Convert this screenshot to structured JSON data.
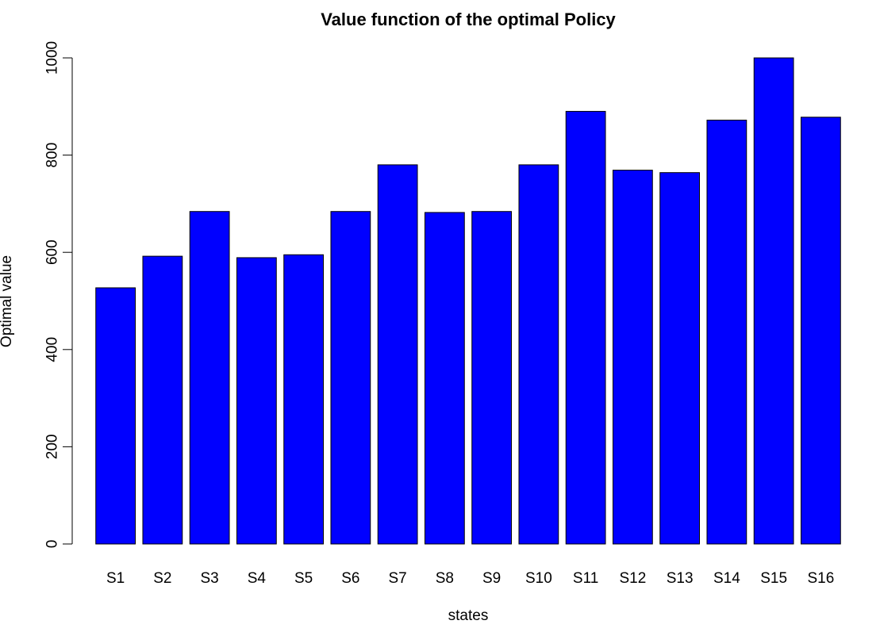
{
  "chart_data": {
    "type": "bar",
    "title": "Value function of the optimal Policy",
    "xlabel": "states",
    "ylabel": "Optimal value",
    "categories": [
      "S1",
      "S2",
      "S3",
      "S4",
      "S5",
      "S6",
      "S7",
      "S8",
      "S9",
      "S10",
      "S11",
      "S12",
      "S13",
      "S14",
      "S15",
      "S16"
    ],
    "values": [
      527,
      592,
      684,
      589,
      595,
      684,
      780,
      682,
      684,
      780,
      890,
      769,
      764,
      872,
      1000,
      878
    ],
    "ylim": [
      0,
      1000
    ],
    "yticks": [
      0,
      200,
      400,
      600,
      800,
      1000
    ],
    "bar_color": "#0000FF",
    "bar_border_color": "#000000",
    "grid": false,
    "legend": "none"
  }
}
